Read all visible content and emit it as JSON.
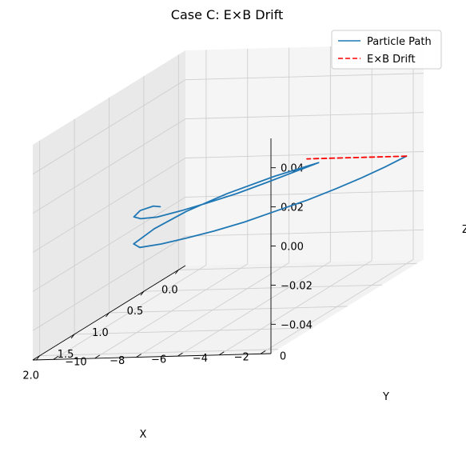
{
  "chart_data": {
    "type": "line",
    "projection": "3d",
    "title": "Case C: E×B Drift",
    "xlabel": "X",
    "ylabel": "Y",
    "zlabel": "Z",
    "xlim": [
      -0.1,
      2.1
    ],
    "ylim": [
      -11,
      0.5
    ],
    "zlim": [
      -0.055,
      0.055
    ],
    "xticks": [
      0.0,
      0.5,
      1.0,
      1.5,
      2.0
    ],
    "xtick_labels": [
      "0.0",
      "0.5",
      "1.0",
      "1.5",
      "2.0"
    ],
    "yticks": [
      0,
      -2,
      -4,
      -6,
      -8,
      -10
    ],
    "ytick_labels": [
      "0",
      "−2",
      "−4",
      "−6",
      "−8",
      "−10"
    ],
    "zticks": [
      0.04,
      0.02,
      0.0,
      -0.02,
      -0.04
    ],
    "ztick_labels": [
      "0.04",
      "0.02",
      "0.00",
      "−0.02",
      "−0.04"
    ],
    "grid": true,
    "legend_position": "top-right",
    "series": [
      {
        "name": "Particle Path",
        "color": "#1f77b4",
        "style": "solid",
        "x": [
          0.0,
          0.25,
          0.5,
          0.75,
          1.0,
          1.25,
          1.5,
          1.7,
          1.85,
          1.98,
          2.05,
          1.96,
          1.6,
          1.2,
          0.8,
          0.4,
          0.1,
          0.28,
          0.55,
          0.8,
          1.0,
          1.18,
          1.32,
          1.35,
          1.3,
          1.15,
          1.05,
          1.07
        ],
        "y": [
          0.0,
          -0.2,
          -0.5,
          -0.9,
          -1.4,
          -2.1,
          -2.8,
          -3.6,
          -4.4,
          -5.2,
          -6.0,
          -6.6,
          -6.8,
          -6.6,
          -6.0,
          -5.0,
          -3.9,
          -4.3,
          -4.9,
          -5.5,
          -6.2,
          -6.9,
          -7.6,
          -8.3,
          -8.8,
          -9.0,
          -8.7,
          -8.3
        ],
        "z": [
          0,
          0,
          0,
          0,
          0,
          0,
          0,
          0,
          0,
          0,
          0,
          0,
          0,
          0,
          0,
          0,
          0,
          0,
          0,
          0,
          0,
          0,
          0,
          0,
          0,
          0,
          0,
          0
        ]
      },
      {
        "name": "E×B Drift",
        "color": "#ff0000",
        "style": "dashed",
        "x": [
          0.0,
          0.0
        ],
        "y": [
          0.0,
          -4.8
        ],
        "z": [
          0,
          0
        ]
      }
    ]
  }
}
